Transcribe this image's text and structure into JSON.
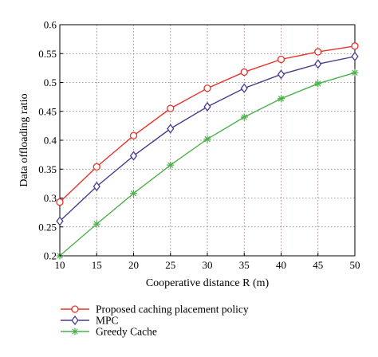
{
  "chart_data": {
    "type": "line",
    "title": "",
    "xlabel": "Cooperative distance R (m)",
    "ylabel": "Data offloading ratio",
    "xlim": [
      10,
      50
    ],
    "ylim": [
      0.2,
      0.6
    ],
    "x": [
      10,
      15,
      20,
      25,
      30,
      35,
      40,
      45,
      50
    ],
    "xticks": [
      "10",
      "15",
      "20",
      "25",
      "30",
      "35",
      "40",
      "45",
      "50"
    ],
    "yticks": [
      "0.2",
      "0.25",
      "0.3",
      "0.35",
      "0.4",
      "0.45",
      "0.5",
      "0.55",
      "0.6"
    ],
    "grid": true,
    "legend_position": "bottom",
    "series": [
      {
        "name": "Proposed caching placement policy",
        "color": "#e8322a",
        "marker": "circle",
        "values": [
          0.293,
          0.354,
          0.408,
          0.455,
          0.49,
          0.518,
          0.54,
          0.553,
          0.563
        ]
      },
      {
        "name": "MPC",
        "color": "#4a3b8f",
        "marker": "diamond",
        "values": [
          0.26,
          0.32,
          0.373,
          0.42,
          0.458,
          0.49,
          0.514,
          0.532,
          0.545
        ]
      },
      {
        "name": "Greedy Cache",
        "color": "#4cb04a",
        "marker": "star",
        "values": [
          0.2,
          0.255,
          0.308,
          0.357,
          0.402,
          0.44,
          0.472,
          0.498,
          0.517
        ]
      }
    ]
  }
}
